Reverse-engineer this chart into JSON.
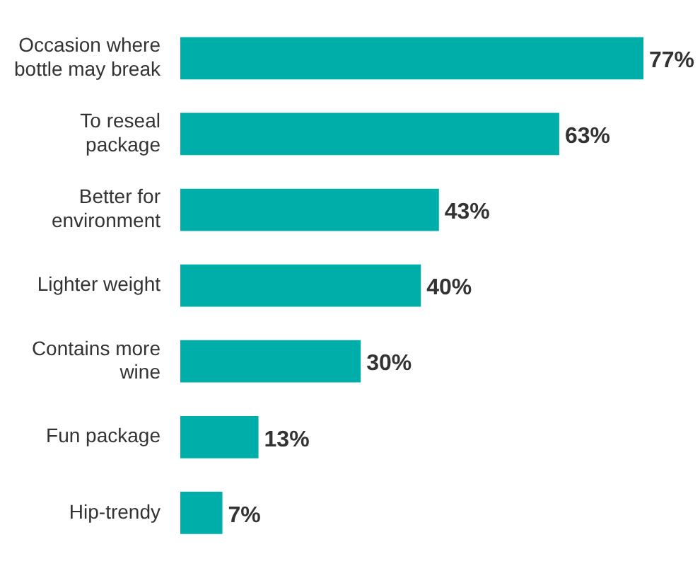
{
  "chart_data": {
    "type": "bar",
    "orientation": "horizontal",
    "categories": [
      "Occasion where bottle may break",
      "To reseal package",
      "Better for environment",
      "Lighter weight",
      "Contains more wine",
      "Fun package",
      "Hip-trendy"
    ],
    "values": [
      77,
      63,
      43,
      40,
      30,
      13,
      7
    ],
    "value_labels": [
      "77%",
      "63%",
      "43%",
      "40%",
      "30%",
      "13%",
      "7%"
    ],
    "color": "#00aea9"
  }
}
